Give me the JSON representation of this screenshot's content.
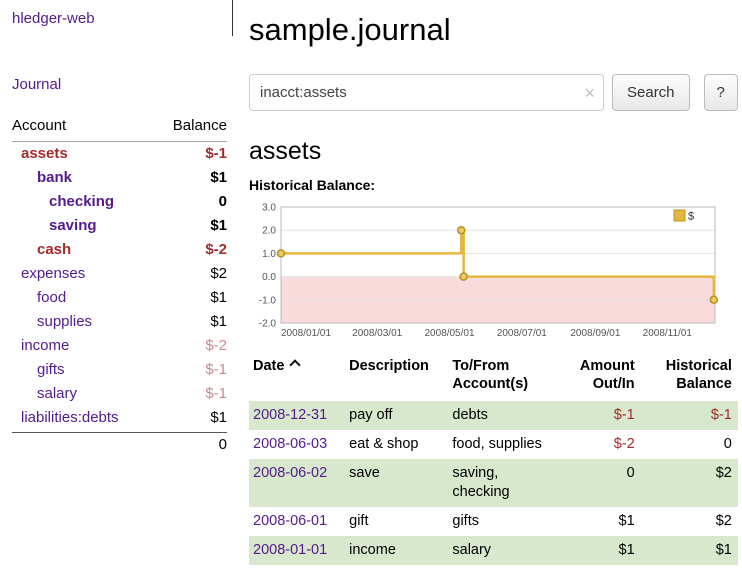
{
  "app": {
    "brand": "hledger-web",
    "nav": {
      "journal": "Journal"
    }
  },
  "sidebar": {
    "header": {
      "account": "Account",
      "balance": "Balance"
    },
    "accounts": [
      {
        "name": "assets",
        "balance": "$-1",
        "level": 0,
        "bold": true,
        "name_style": "negative-strong",
        "balance_style": "negative-strong"
      },
      {
        "name": "bank",
        "balance": "$1",
        "level": 1,
        "bold": true,
        "name_style": "link",
        "balance_style": "normal"
      },
      {
        "name": "checking",
        "balance": "0",
        "level": 2,
        "bold": true,
        "name_style": "link",
        "balance_style": "normal"
      },
      {
        "name": "saving",
        "balance": "$1",
        "level": 2,
        "bold": true,
        "name_style": "link",
        "balance_style": "normal"
      },
      {
        "name": "cash",
        "balance": "$-2",
        "level": 1,
        "bold": true,
        "name_style": "negative-strong",
        "balance_style": "negative-strong"
      },
      {
        "name": "expenses",
        "balance": "$2",
        "level": 0,
        "bold": false,
        "name_style": "link",
        "balance_style": "normal"
      },
      {
        "name": "food",
        "balance": "$1",
        "level": 1,
        "bold": false,
        "name_style": "link",
        "balance_style": "normal"
      },
      {
        "name": "supplies",
        "balance": "$1",
        "level": 1,
        "bold": false,
        "name_style": "link",
        "balance_style": "normal"
      },
      {
        "name": "income",
        "balance": "$-2",
        "level": 0,
        "bold": false,
        "name_style": "link",
        "balance_style": "negative-soft"
      },
      {
        "name": "gifts",
        "balance": "$-1",
        "level": 1,
        "bold": false,
        "name_style": "link",
        "balance_style": "negative-soft"
      },
      {
        "name": "salary",
        "balance": "$-1",
        "level": 1,
        "bold": false,
        "name_style": "link",
        "balance_style": "negative-soft"
      },
      {
        "name": "liabilities:debts",
        "balance": "$1",
        "level": 0,
        "bold": false,
        "name_style": "link",
        "balance_style": "normal"
      }
    ],
    "total": "0"
  },
  "main": {
    "title": "sample.journal",
    "search": {
      "value": "inacct:assets",
      "clear_icon": "×",
      "search_button": "Search",
      "help_button": "?"
    },
    "account_heading": "assets",
    "chart_title": "Historical Balance:"
  },
  "chart_data": {
    "type": "line",
    "title": "Historical Balance",
    "legend": [
      {
        "label": "$",
        "color": "#e3b741"
      }
    ],
    "ylim": [
      -2.0,
      3.0
    ],
    "yticks": [
      3.0,
      2.0,
      1.0,
      0.0,
      -1.0,
      -2.0
    ],
    "xtick_labels": [
      "2008/01/01",
      "2008/03/01",
      "2008/05/01",
      "2008/07/01",
      "2008/09/01",
      "2008/11/01"
    ],
    "xtick_days": [
      0,
      60,
      121,
      182,
      244,
      305
    ],
    "x_range_days": [
      0,
      366
    ],
    "grid": true,
    "legend_position": "top-right",
    "series": [
      {
        "name": "$",
        "step": true,
        "points": [
          {
            "date": "2008-01-01",
            "day": 0,
            "value": 1
          },
          {
            "date": "2008-06-01",
            "day": 152,
            "value": 2
          },
          {
            "date": "2008-06-03",
            "day": 154,
            "value": 0
          },
          {
            "date": "2008-12-31",
            "day": 365,
            "value": -1
          }
        ]
      }
    ],
    "colors": {
      "line": "#e3b741",
      "marker_fill": "#edcb63",
      "marker_stroke": "#b5901a",
      "negative_area": "#fadbdb",
      "grid": "#e2e2e2",
      "frame": "#b9b9b9",
      "tick_text": "#555555"
    }
  },
  "register": {
    "headers": {
      "date": "Date",
      "description": "Description",
      "accounts": "To/From Account(s)",
      "amount": "Amount Out/In",
      "balance": "Historical Balance"
    },
    "rows": [
      {
        "date": "2008-12-31",
        "description": "pay off",
        "accounts": "debts",
        "amount": "$-1",
        "amount_negative": true,
        "balance": "$-1",
        "balance_negative": true
      },
      {
        "date": "2008-06-03",
        "description": "eat & shop",
        "accounts": "food, supplies",
        "amount": "$-2",
        "amount_negative": true,
        "balance": "0",
        "balance_negative": false
      },
      {
        "date": "2008-06-02",
        "description": "save",
        "accounts": "saving, checking",
        "amount": "0",
        "amount_negative": false,
        "balance": "$2",
        "balance_negative": false
      },
      {
        "date": "2008-06-01",
        "description": "gift",
        "accounts": "gifts",
        "amount": "$1",
        "amount_negative": false,
        "balance": "$2",
        "balance_negative": false
      },
      {
        "date": "2008-01-01",
        "description": "income",
        "accounts": "salary",
        "amount": "$1",
        "amount_negative": false,
        "balance": "$1",
        "balance_negative": false
      }
    ]
  },
  "colors": {
    "link": "#551a8b",
    "negative_strong": "#a02c2c",
    "negative_soft": "#c98c8c",
    "row_stripe": "#d7e8cd"
  }
}
